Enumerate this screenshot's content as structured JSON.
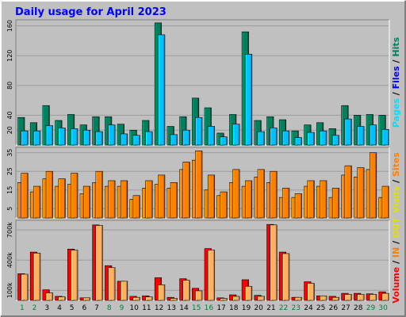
{
  "chart_data": {
    "title": "Daily usage for April 2023",
    "days": [
      "1",
      "2",
      "3",
      "4",
      "5",
      "6",
      "7",
      "8",
      "9",
      "10",
      "11",
      "12",
      "13",
      "14",
      "15",
      "16",
      "17",
      "18",
      "19",
      "20",
      "21",
      "22",
      "23",
      "24",
      "25",
      "26",
      "27",
      "28",
      "29",
      "30"
    ],
    "weekend_days": [
      1,
      2,
      8,
      9,
      15,
      16,
      22,
      23,
      29,
      30
    ],
    "colors": {
      "background": "#c0c0c0",
      "panel": "#c0c0c0",
      "grid": "#9c9c9c",
      "title": "#0000ff",
      "hits": "#00805c",
      "files": "#00c0ff",
      "pages": "#00e0ff",
      "visits": "#ffff00",
      "sites": "#ff8000",
      "volume": "#ff0000",
      "in_out": "#ffb060",
      "weekend_label": "#008040",
      "weekday_label": "#000000"
    },
    "charts": [
      {
        "type": "bar",
        "axis_label_parts": [
          {
            "text": "Pages",
            "color": "#00e0ff"
          },
          {
            "text": " / ",
            "color": "#000000"
          },
          {
            "text": "Files",
            "color": "#0000ff"
          },
          {
            "text": " / ",
            "color": "#000000"
          },
          {
            "text": "Hits",
            "color": "#008060"
          }
        ],
        "ylim": [
          0,
          166
        ],
        "ticks": [
          "160",
          "120",
          "80",
          "40",
          "20"
        ],
        "tick_values": [
          160,
          120,
          80,
          40,
          20
        ],
        "series": [
          {
            "name": "Hits",
            "values": [
              37,
              30,
              53,
              33,
              41,
              27,
              38,
              38,
              28,
              20,
              33,
              164,
              25,
              38,
              63,
              50,
              16,
              41,
              152,
              33,
              38,
              34,
              19,
              27,
              30,
              22,
              53,
              40,
              41,
              40
            ]
          },
          {
            "name": "Files",
            "values": [
              19,
              19,
              26,
              23,
              22,
              20,
              18,
              27,
              15,
              13,
              18,
              148,
              14,
              20,
              37,
              25,
              11,
              28,
              122,
              18,
              23,
              19,
              10,
              17,
              19,
              13,
              35,
              25,
              27,
              21
            ]
          }
        ]
      },
      {
        "type": "bar",
        "axis_label_parts": [
          {
            "text": "Visits",
            "color": "#e0e000"
          },
          {
            "text": " / ",
            "color": "#000000"
          },
          {
            "text": "Sites",
            "color": "#ff8000"
          }
        ],
        "ylim": [
          0,
          37
        ],
        "ticks": [
          "35",
          "25",
          "15",
          "5"
        ],
        "tick_values": [
          35,
          25,
          15,
          5
        ],
        "series": [
          {
            "name": "Visits",
            "values": [
              19,
              14,
              21,
              17,
              18,
              13,
              19,
              17,
              17,
              10,
              16,
              18,
              16,
              26,
              31,
              15,
              12,
              19,
              17,
              22,
              19,
              11,
              11,
              17,
              17,
              11,
              23,
              22,
              26,
              11
            ]
          },
          {
            "name": "Sites",
            "values": [
              24,
              17,
              25,
              21,
              24,
              17,
              25,
              20,
              20,
              12,
              20,
              23,
              19,
              30,
              36,
              23,
              14,
              26,
              20,
              26,
              25,
              16,
              13,
              20,
              20,
              16,
              28,
              27,
              35,
              17
            ]
          }
        ]
      },
      {
        "type": "bar",
        "axis_label_parts": [
          {
            "text": "Volume",
            "color": "#ff0000"
          },
          {
            "text": " / ",
            "color": "#000000"
          },
          {
            "text": "IN",
            "color": "#ff8000"
          },
          {
            "text": " / ",
            "color": "#000000"
          },
          {
            "text": "OUT",
            "color": "#e0e000"
          }
        ],
        "ylim": [
          0,
          780
        ],
        "ticks": [
          "700k",
          "400k",
          "100k"
        ],
        "tick_values": [
          700,
          400,
          100
        ],
        "series": [
          {
            "name": "Volume",
            "values": [
              265,
              480,
              105,
              40,
              510,
              25,
              750,
              345,
              190,
              40,
              45,
              225,
              30,
              215,
              120,
              515,
              25,
              55,
              205,
              50,
              755,
              480,
              30,
              185,
              45,
              40,
              70,
              70,
              65,
              85
            ]
          },
          {
            "name": "IN/OUT",
            "values": [
              260,
              470,
              75,
              35,
              500,
              25,
              745,
              325,
              190,
              30,
              35,
              155,
              20,
              200,
              95,
              500,
              20,
              40,
              140,
              40,
              750,
              465,
              30,
              170,
              45,
              30,
              60,
              60,
              60,
              70
            ]
          }
        ]
      }
    ]
  }
}
